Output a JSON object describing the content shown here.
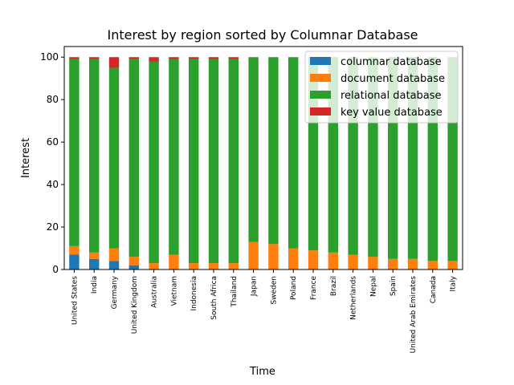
{
  "chart_data": {
    "type": "bar",
    "stacked": true,
    "title": "Interest by region sorted by Columnar Database",
    "xlabel": "Time",
    "ylabel": "Interest",
    "ylim": [
      0,
      105
    ],
    "yticks": [
      0,
      20,
      40,
      60,
      80,
      100
    ],
    "grid": false,
    "legend_position": "top-right",
    "categories": [
      "United States",
      "India",
      "Germany",
      "United Kingdom",
      "Australia",
      "Vietnam",
      "Indonesia",
      "South Africa",
      "Thailand",
      "Japan",
      "Sweden",
      "Poland",
      "France",
      "Brazil",
      "Netherlands",
      "Nepal",
      "Spain",
      "United Arab Emirates",
      "Canada",
      "Italy"
    ],
    "series": [
      {
        "name": "columnar database",
        "color": "#1f77b4",
        "values": [
          7,
          5,
          4,
          2,
          0,
          0,
          0,
          0,
          0,
          0,
          0,
          0,
          0,
          0,
          0,
          0,
          0,
          0,
          0,
          0
        ]
      },
      {
        "name": "document database",
        "color": "#ff7f0e",
        "values": [
          4,
          3,
          6,
          4,
          3,
          7,
          3,
          3,
          3,
          13,
          12,
          10,
          9,
          8,
          7,
          6,
          5,
          5,
          4,
          4
        ]
      },
      {
        "name": "relational database",
        "color": "#2ca02c",
        "values": [
          88,
          91,
          85,
          93,
          95,
          92,
          96,
          96,
          96,
          87,
          88,
          90,
          91,
          92,
          93,
          94,
          95,
          95,
          96,
          96
        ]
      },
      {
        "name": "key value database",
        "color": "#d62728",
        "values": [
          1,
          1,
          5,
          1,
          2,
          1,
          1,
          1,
          1,
          0,
          0,
          0,
          0,
          0,
          0,
          0,
          0,
          0,
          0,
          0
        ]
      }
    ]
  }
}
